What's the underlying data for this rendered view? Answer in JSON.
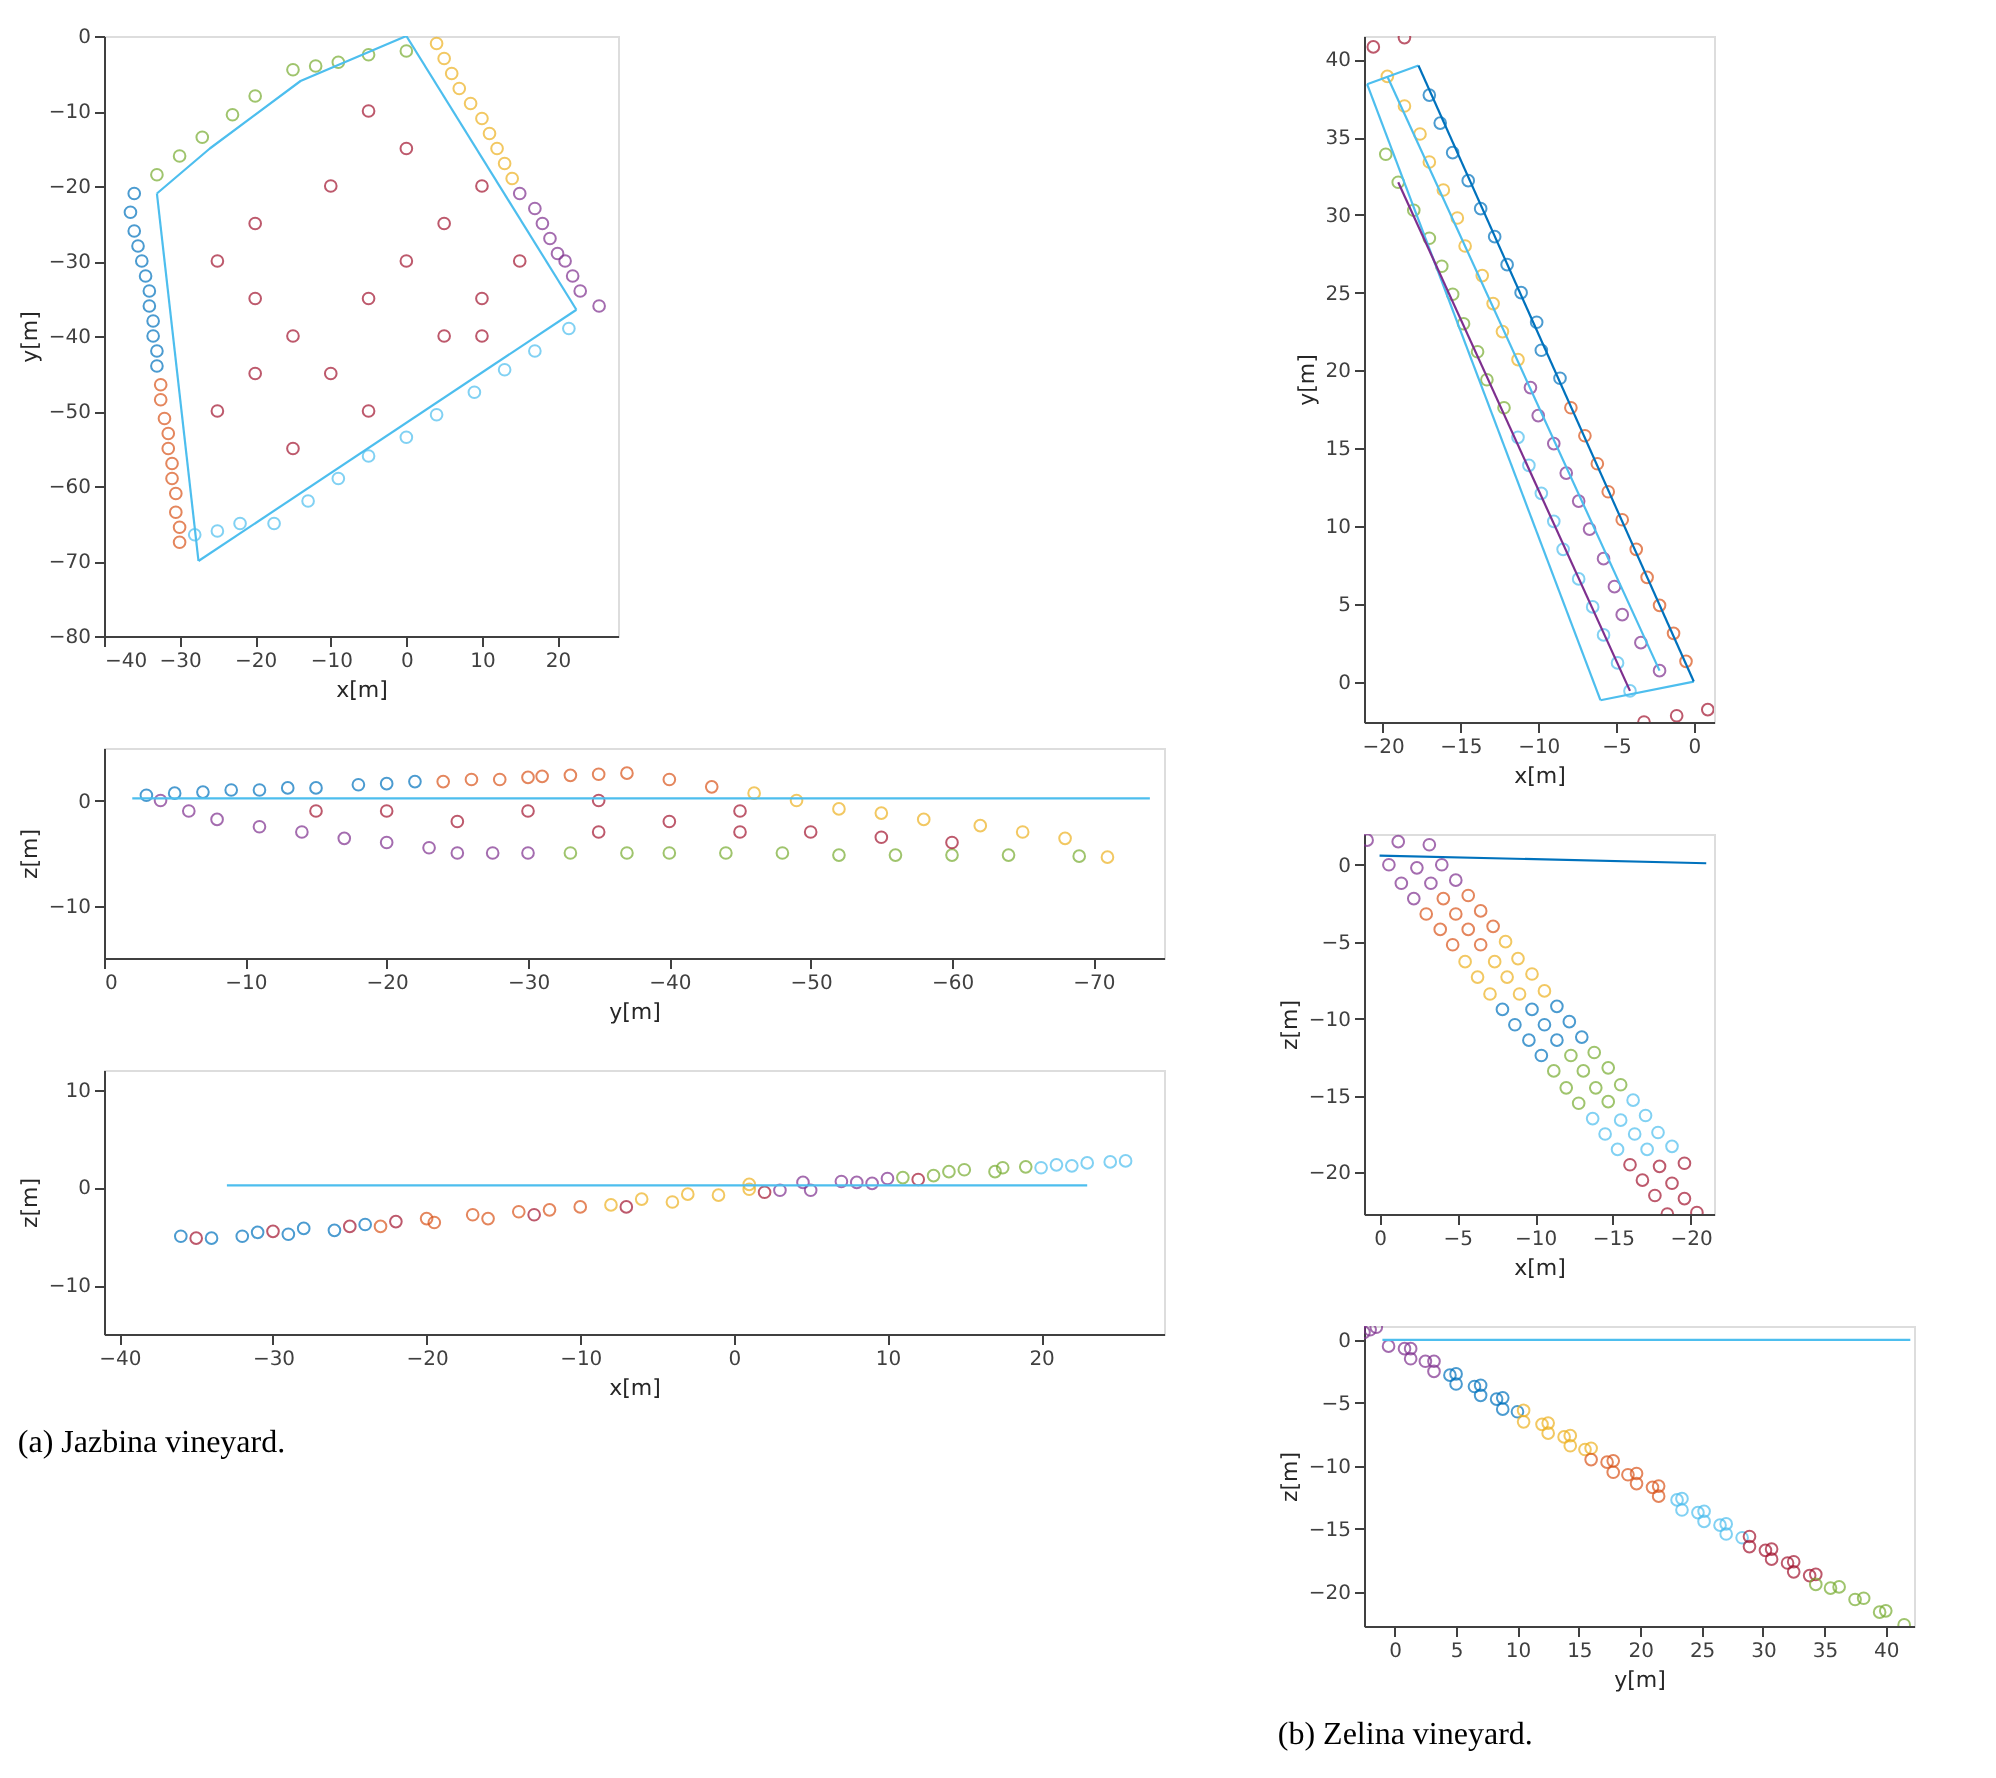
{
  "chart_data": [
    {
      "type": "scatter",
      "xlabel": "x[m]",
      "ylabel": "y[m]",
      "xlim": [
        -40,
        28
      ],
      "ylim": [
        -80,
        0
      ],
      "xticks": [
        -40,
        -30,
        -20,
        -10,
        0,
        10,
        20
      ],
      "yticks": [
        -80,
        -70,
        -60,
        -50,
        -40,
        -30,
        -20,
        -10,
        0
      ],
      "grid": false,
      "marker": "circle",
      "series": [
        {
          "type": "scatter",
          "color": "#0072bd",
          "x": [
            -36,
            -36.5,
            -36,
            -35.5,
            -35,
            -34.5,
            -34,
            -34,
            -33.5,
            -33.5,
            -33,
            -33
          ],
          "values": [
            -21,
            -23.5,
            -26,
            -28,
            -30,
            -32,
            -34,
            -36,
            -38,
            -40,
            -42,
            -44
          ]
        },
        {
          "type": "scatter",
          "color": "#d95319",
          "x": [
            -32.5,
            -32.5,
            -32,
            -31.5,
            -31.5,
            -31,
            -31,
            -30.5,
            -30.5,
            -30,
            -30
          ],
          "values": [
            -46.5,
            -48.5,
            -51,
            -53,
            -55,
            -57,
            -59,
            -61,
            -63.5,
            -65.5,
            -67.5
          ]
        },
        {
          "type": "scatter",
          "color": "#edb120",
          "x": [
            4,
            5,
            6,
            7,
            8.5,
            10,
            11,
            12,
            13,
            14
          ],
          "values": [
            -1,
            -3,
            -5,
            -7,
            -9,
            -11,
            -13,
            -15,
            -17,
            -19
          ]
        },
        {
          "type": "scatter",
          "color": "#7e2f8e",
          "x": [
            15,
            17,
            18,
            19,
            20,
            21,
            22,
            23,
            25.5
          ],
          "values": [
            -21,
            -23,
            -25,
            -27,
            -29,
            -30,
            -32,
            -34,
            -36
          ]
        },
        {
          "type": "scatter",
          "color": "#77ac30",
          "x": [
            -33,
            -30,
            -27,
            -23,
            -20,
            -15,
            -12,
            -9,
            -5,
            0
          ],
          "values": [
            -18.5,
            -16,
            -13.5,
            -10.5,
            -8,
            -4.5,
            -4,
            -3.5,
            -2.5,
            -2
          ]
        },
        {
          "type": "scatter",
          "color": "#4dbeee",
          "x": [
            -28,
            -25,
            -22,
            -17.5,
            -13,
            -9,
            -5,
            0,
            4,
            9,
            13,
            17,
            21.5
          ],
          "values": [
            -66.5,
            -66,
            -65,
            -65,
            -62,
            -59,
            -56,
            -53.5,
            -50.5,
            -47.5,
            -44.5,
            -42,
            -39
          ]
        },
        {
          "type": "scatter",
          "color": "#a2142f",
          "x": [
            -25,
            -20,
            -15,
            -10,
            -5,
            0,
            5,
            10,
            -10,
            -20,
            -5,
            5,
            10,
            15,
            -15,
            -25,
            -20,
            0,
            -5,
            10
          ],
          "values": [
            -30,
            -35,
            -40,
            -45,
            -50,
            -30,
            -25,
            -20,
            -20,
            -25,
            -35,
            -40,
            -35,
            -30,
            -55,
            -50,
            -45,
            -15,
            -10,
            -40
          ]
        },
        {
          "type": "line",
          "marker": "none",
          "color": "#4dbeee",
          "x": [
            0,
            22.5
          ],
          "values": [
            0,
            -36.5
          ]
        },
        {
          "type": "line",
          "marker": "none",
          "color": "#4dbeee",
          "x": [
            -27.5,
            22.5
          ],
          "values": [
            -70,
            -36.5
          ]
        },
        {
          "type": "line",
          "marker": "none",
          "color": "#4dbeee",
          "x": [
            -33,
            -27.5
          ],
          "values": [
            -21,
            -70
          ]
        },
        {
          "type": "line",
          "marker": "none",
          "color": "#4dbeee",
          "x": [
            -33,
            -26,
            -14,
            0
          ],
          "values": [
            -21,
            -15,
            -6,
            0
          ]
        }
      ]
    },
    {
      "type": "scatter",
      "xlabel": "y[m]",
      "ylabel": "z[m]",
      "xlim": [
        0,
        -75
      ],
      "ylim": [
        -15,
        5
      ],
      "xticks": [
        0,
        -10,
        -20,
        -30,
        -40,
        -50,
        -60,
        -70
      ],
      "yticks": [
        -10,
        0
      ],
      "grid": false,
      "marker": "circle",
      "series": [
        {
          "type": "scatter",
          "color": "#0072bd",
          "x": [
            -3,
            -5,
            -7,
            -9,
            -11,
            -13,
            -15,
            -18,
            -20,
            -22
          ],
          "values": [
            0.5,
            0.7,
            0.8,
            1,
            1,
            1.2,
            1.2,
            1.5,
            1.6,
            1.8
          ]
        },
        {
          "type": "scatter",
          "color": "#d95319",
          "x": [
            -24,
            -26,
            -28,
            -30,
            -31,
            -33,
            -35,
            -37,
            -40,
            -43
          ],
          "values": [
            1.8,
            2,
            2,
            2.2,
            2.3,
            2.4,
            2.5,
            2.6,
            2,
            1.3
          ]
        },
        {
          "type": "scatter",
          "color": "#edb120",
          "x": [
            -46,
            -49,
            -52,
            -55,
            -58,
            -62,
            -65,
            -68,
            -71
          ],
          "values": [
            0.7,
            0,
            -0.8,
            -1.2,
            -1.8,
            -2.4,
            -3,
            -3.6,
            -5.4
          ]
        },
        {
          "type": "scatter",
          "color": "#7e2f8e",
          "x": [
            -4,
            -6,
            -8,
            -11,
            -14,
            -17,
            -20,
            -23,
            -25,
            -27.5,
            -30
          ],
          "values": [
            0,
            -1,
            -1.8,
            -2.5,
            -3,
            -3.6,
            -4,
            -4.5,
            -5,
            -5,
            -5
          ]
        },
        {
          "type": "scatter",
          "color": "#77ac30",
          "x": [
            -33,
            -37,
            -40,
            -44,
            -48,
            -52,
            -56,
            -60,
            -64,
            -69
          ],
          "values": [
            -5,
            -5,
            -5,
            -5,
            -5,
            -5.2,
            -5.2,
            -5.2,
            -5.2,
            -5.3
          ]
        },
        {
          "type": "scatter",
          "color": "#a2142f",
          "x": [
            -20,
            -30,
            -35,
            -40,
            -45,
            -50,
            -25,
            -15,
            -55,
            -60,
            -35,
            -45
          ],
          "values": [
            -1,
            -1,
            0,
            -2,
            -3,
            -3,
            -2,
            -1,
            -3.5,
            -4,
            -3,
            -1
          ]
        },
        {
          "type": "line",
          "marker": "none",
          "color": "#4dbeee",
          "x": [
            -2,
            -74
          ],
          "values": [
            0.2,
            0.2
          ]
        }
      ]
    },
    {
      "type": "scatter",
      "xlabel": "x[m]",
      "ylabel": "z[m]",
      "xlim": [
        -41,
        28
      ],
      "ylim": [
        -15,
        12
      ],
      "xticks": [
        -40,
        -30,
        -20,
        -10,
        0,
        10,
        20
      ],
      "yticks": [
        -10,
        0,
        10
      ],
      "grid": false,
      "marker": "circle",
      "annotations": [
        "(a) Jazbina vineyard."
      ],
      "series": [
        {
          "type": "scatter",
          "color": "#0072bd",
          "x": [
            -36,
            -34,
            -32,
            -31,
            -29,
            -28,
            -26,
            -24
          ],
          "values": [
            -5,
            -5.2,
            -5,
            -4.6,
            -4.8,
            -4.2,
            -4.4,
            -3.8
          ]
        },
        {
          "type": "scatter",
          "color": "#d95319",
          "x": [
            -23,
            -20,
            -19.5,
            -17,
            -16,
            -14,
            -12,
            -10
          ],
          "values": [
            -4,
            -3.2,
            -3.6,
            -2.8,
            -3.2,
            -2.5,
            -2.3,
            -2
          ]
        },
        {
          "type": "scatter",
          "color": "#edb120",
          "x": [
            -8,
            -6,
            -4,
            -3,
            -1,
            1,
            1
          ],
          "values": [
            -1.8,
            -1.2,
            -1.5,
            -0.7,
            -0.8,
            -0.2,
            0.3
          ]
        },
        {
          "type": "scatter",
          "color": "#7e2f8e",
          "x": [
            3,
            4.5,
            5,
            7,
            8,
            9,
            10
          ],
          "values": [
            -0.3,
            0.5,
            -0.3,
            0.6,
            0.5,
            0.4,
            0.9
          ]
        },
        {
          "type": "scatter",
          "color": "#77ac30",
          "x": [
            11,
            13,
            14,
            15,
            17,
            17.5,
            19
          ],
          "values": [
            1,
            1.2,
            1.6,
            1.8,
            1.6,
            2,
            2.1
          ]
        },
        {
          "type": "scatter",
          "color": "#4dbeee",
          "x": [
            20,
            21,
            22,
            23,
            24.5,
            25.5
          ],
          "values": [
            2,
            2.3,
            2.2,
            2.5,
            2.6,
            2.7
          ]
        },
        {
          "type": "scatter",
          "color": "#a2142f",
          "x": [
            -35,
            -30,
            -25,
            -22,
            -13,
            -7,
            2,
            12
          ],
          "values": [
            -5.2,
            -4.5,
            -4,
            -3.5,
            -2.8,
            -2,
            -0.5,
            0.8
          ]
        },
        {
          "type": "line",
          "marker": "none",
          "color": "#4dbeee",
          "x": [
            -33,
            23
          ],
          "values": [
            0.2,
            0.2
          ]
        }
      ]
    },
    {
      "type": "scatter",
      "xlabel": "x[m]",
      "ylabel": "y[m]",
      "xlim": [
        -21.2,
        1.3
      ],
      "ylim": [
        -2.6,
        41.5
      ],
      "xticks": [
        -20,
        -15,
        -10,
        -5,
        0
      ],
      "yticks": [
        0,
        5,
        10,
        15,
        20,
        25,
        30,
        35,
        40
      ],
      "grid": false,
      "marker": "circle",
      "series": [
        {
          "type": "scatter",
          "color": "#0072bd",
          "x": [
            -17,
            -16.3,
            -15.5,
            -14.5,
            -13.7,
            -12.8,
            -12,
            -11.1,
            -10.1,
            -9.8,
            -8.6
          ],
          "values": [
            37.7,
            35.9,
            34,
            32.2,
            30.4,
            28.6,
            26.8,
            25,
            23.1,
            21.3,
            19.5
          ]
        },
        {
          "type": "scatter",
          "color": "#d95319",
          "x": [
            -7.9,
            -7,
            -6.2,
            -5.5,
            -4.6,
            -3.7,
            -3,
            -2.2,
            -1.3,
            -0.5
          ],
          "values": [
            17.6,
            15.8,
            14,
            12.2,
            10.4,
            8.5,
            6.7,
            4.9,
            3.1,
            1.3
          ]
        },
        {
          "type": "scatter",
          "color": "#edb120",
          "x": [
            -19.7,
            -18.6,
            -17.6,
            -17,
            -16.1,
            -15.2,
            -14.7,
            -13.6,
            -12.9,
            -12.3,
            -11.3
          ],
          "values": [
            38.9,
            37,
            35.2,
            33.4,
            31.6,
            29.8,
            28,
            26.1,
            24.3,
            22.5,
            20.7
          ]
        },
        {
          "type": "scatter",
          "color": "#7e2f8e",
          "x": [
            -10.5,
            -10,
            -9,
            -8.2,
            -7.4,
            -6.7,
            -5.8,
            -5.1,
            -4.6,
            -3.4,
            -2.2
          ],
          "values": [
            18.9,
            17.1,
            15.3,
            13.4,
            11.6,
            9.8,
            7.9,
            6.1,
            4.3,
            2.5,
            0.7
          ]
        },
        {
          "type": "scatter",
          "color": "#77ac30",
          "x": [
            -19.8,
            -19,
            -18,
            -17,
            -16.2,
            -15.5,
            -14.8,
            -13.9,
            -13.3,
            -12.2
          ],
          "values": [
            33.9,
            32.1,
            30.3,
            28.5,
            26.7,
            24.9,
            23,
            21.2,
            19.4,
            17.6
          ]
        },
        {
          "type": "scatter",
          "color": "#4dbeee",
          "x": [
            -11.3,
            -10.6,
            -9.8,
            -9,
            -8.4,
            -7.4,
            -6.5,
            -5.8,
            -4.9,
            -4.1
          ],
          "values": [
            15.7,
            13.9,
            12.1,
            10.3,
            8.5,
            6.6,
            4.8,
            3,
            1.2,
            -0.6
          ]
        },
        {
          "type": "scatter",
          "color": "#a2142f",
          "x": [
            -20.6,
            -18.6,
            -3.2,
            -1.1,
            0.9
          ],
          "values": [
            40.8,
            41.4,
            -2.6,
            -2.2,
            -1.8
          ]
        },
        {
          "type": "line",
          "marker": "none",
          "color": "#4dbeee",
          "x": [
            -21,
            -17.7
          ],
          "values": [
            38.4,
            39.6
          ]
        },
        {
          "type": "line",
          "marker": "none",
          "color": "#4dbeee",
          "x": [
            -21,
            -6
          ],
          "values": [
            38.4,
            -1.2
          ]
        },
        {
          "type": "line",
          "marker": "none",
          "color": "#4dbeee",
          "x": [
            -6,
            0
          ],
          "values": [
            -1.2,
            0
          ]
        },
        {
          "type": "line",
          "marker": "none",
          "color": "#0072bd",
          "x": [
            -17.7,
            0
          ],
          "values": [
            39.6,
            0
          ]
        },
        {
          "type": "line",
          "marker": "none",
          "color": "#4dbeee",
          "x": [
            -19.7,
            -2.2
          ],
          "values": [
            38.9,
            0.7
          ]
        },
        {
          "type": "line",
          "marker": "none",
          "color": "#7e2f8e",
          "x": [
            -19,
            -4.1
          ],
          "values": [
            32.1,
            -0.6
          ]
        }
      ]
    },
    {
      "type": "scatter",
      "xlabel": "x[m]",
      "ylabel": "z[m]",
      "xlim": [
        1,
        -21.5
      ],
      "ylim": [
        -22.7,
        2
      ],
      "xticks": [
        0,
        -5,
        -10,
        -15,
        -20
      ],
      "yticks": [
        -20,
        -15,
        -10,
        -5,
        0
      ],
      "grid": false,
      "marker": "circle",
      "series": [
        {
          "type": "scatter",
          "color": "#7e2f8e",
          "x": [
            0.8,
            -1.2,
            -3.2,
            -0.6,
            -2.4,
            -4,
            -1.4,
            -3.3,
            -4.9,
            -2.2
          ],
          "values": [
            1.6,
            1.5,
            1.3,
            0,
            -0.2,
            0,
            -1.2,
            -1.2,
            -1,
            -2.2
          ]
        },
        {
          "type": "scatter",
          "color": "#d95319",
          "x": [
            -4.1,
            -5.7,
            -3,
            -4.9,
            -6.5,
            -3.9,
            -5.7,
            -7.3,
            -4.7,
            -6.5
          ],
          "values": [
            -2.2,
            -2,
            -3.2,
            -3.2,
            -3,
            -4.2,
            -4.2,
            -4,
            -5.2,
            -5.2
          ]
        },
        {
          "type": "scatter",
          "color": "#edb120",
          "x": [
            -8.1,
            -5.5,
            -7.4,
            -8.9,
            -6.3,
            -8.2,
            -9.8,
            -7.1,
            -9,
            -10.6
          ],
          "values": [
            -5,
            -6.3,
            -6.3,
            -6.1,
            -7.3,
            -7.3,
            -7.1,
            -8.4,
            -8.4,
            -8.2
          ]
        },
        {
          "type": "scatter",
          "color": "#0072bd",
          "x": [
            -7.9,
            -9.8,
            -11.4,
            -8.7,
            -10.6,
            -12.2,
            -9.6,
            -11.4,
            -13,
            -10.4
          ],
          "values": [
            -9.4,
            -9.4,
            -9.2,
            -10.4,
            -10.4,
            -10.2,
            -11.4,
            -11.4,
            -11.2,
            -12.4
          ]
        },
        {
          "type": "scatter",
          "color": "#77ac30",
          "x": [
            -12.3,
            -13.8,
            -11.2,
            -13.1,
            -14.7,
            -12,
            -13.9,
            -15.5,
            -12.8,
            -14.7
          ],
          "values": [
            -12.4,
            -12.2,
            -13.4,
            -13.4,
            -13.2,
            -14.5,
            -14.5,
            -14.3,
            -15.5,
            -15.4
          ]
        },
        {
          "type": "scatter",
          "color": "#4dbeee",
          "x": [
            -16.3,
            -13.7,
            -15.5,
            -17.1,
            -14.5,
            -16.4,
            -17.9,
            -15.3,
            -17.2,
            -18.8
          ],
          "values": [
            -15.3,
            -16.5,
            -16.6,
            -16.3,
            -17.5,
            -17.5,
            -17.4,
            -18.5,
            -18.5,
            -18.3
          ]
        },
        {
          "type": "scatter",
          "color": "#a2142f",
          "x": [
            -16.1,
            -18,
            -19.6,
            -16.9,
            -18.8,
            -17.7,
            -19.6,
            -18.5,
            -20.4
          ],
          "values": [
            -19.5,
            -19.6,
            -19.4,
            -20.5,
            -20.7,
            -21.5,
            -21.7,
            -22.7,
            -22.6
          ]
        },
        {
          "type": "line",
          "marker": "none",
          "color": "#0072bd",
          "x": [
            0,
            -21
          ],
          "values": [
            0.6,
            0.1
          ]
        }
      ]
    },
    {
      "type": "scatter",
      "xlabel": "y[m]",
      "ylabel": "z[m]",
      "xlim": [
        -2.5,
        42.3
      ],
      "ylim": [
        -22.7,
        1.1
      ],
      "xticks": [
        0,
        5,
        10,
        15,
        20,
        25,
        30,
        35,
        40
      ],
      "yticks": [
        -20,
        -15,
        -10,
        -5,
        0
      ],
      "grid": false,
      "marker": "circle",
      "annotations": [
        "(b) Zelina vineyard."
      ],
      "series": [
        {
          "type": "scatter",
          "color": "#7e2f8e",
          "x": [
            -2.5,
            -2,
            -1.5,
            -0.5,
            0.8,
            1.3,
            1.3,
            2.5,
            3.2,
            3.2
          ],
          "values": [
            0.6,
            0.8,
            1,
            -0.5,
            -0.7,
            -0.7,
            -1.5,
            -1.7,
            -1.7,
            -2.5
          ]
        },
        {
          "type": "scatter",
          "color": "#0072bd",
          "x": [
            4.5,
            5,
            5,
            6.5,
            7,
            7,
            8.3,
            8.8,
            8.8,
            10
          ],
          "values": [
            -2.8,
            -2.7,
            -3.5,
            -3.7,
            -3.6,
            -4.4,
            -4.7,
            -4.6,
            -5.5,
            -5.7
          ]
        },
        {
          "type": "scatter",
          "color": "#edb120",
          "x": [
            10.5,
            10.5,
            12,
            12.5,
            12.5,
            13.8,
            14.3,
            14.3,
            15.5,
            16
          ],
          "values": [
            -5.6,
            -6.5,
            -6.7,
            -6.6,
            -7.4,
            -7.7,
            -7.6,
            -8.4,
            -8.7,
            -8.6
          ]
        },
        {
          "type": "scatter",
          "color": "#d95319",
          "x": [
            16,
            17.3,
            17.8,
            17.8,
            19,
            19.7,
            19.7,
            21,
            21.5,
            21.5
          ],
          "values": [
            -9.5,
            -9.7,
            -9.6,
            -10.5,
            -10.7,
            -10.6,
            -11.4,
            -11.7,
            -11.6,
            -12.4
          ]
        },
        {
          "type": "scatter",
          "color": "#4dbeee",
          "x": [
            23,
            23.4,
            23.4,
            24.7,
            25.2,
            25.2,
            26.5,
            27,
            27,
            28.3
          ],
          "values": [
            -12.7,
            -12.6,
            -13.5,
            -13.7,
            -13.6,
            -14.4,
            -14.7,
            -14.6,
            -15.4,
            -15.7
          ]
        },
        {
          "type": "scatter",
          "color": "#a2142f",
          "x": [
            28.9,
            28.9,
            30.2,
            30.7,
            30.7,
            32,
            32.5,
            32.5,
            33.8,
            34.3
          ],
          "values": [
            -15.6,
            -16.4,
            -16.7,
            -16.6,
            -17.4,
            -17.7,
            -17.6,
            -18.4,
            -18.7,
            -18.6
          ]
        },
        {
          "type": "scatter",
          "color": "#77ac30",
          "x": [
            34.3,
            35.5,
            36.2,
            37.5,
            38.2,
            39.5,
            40,
            41.5
          ],
          "values": [
            -19.4,
            -19.7,
            -19.6,
            -20.6,
            -20.5,
            -21.6,
            -21.5,
            -22.6
          ]
        },
        {
          "type": "line",
          "marker": "none",
          "color": "#4dbeee",
          "x": [
            -1,
            42
          ],
          "values": [
            0,
            0
          ]
        }
      ]
    }
  ]
}
